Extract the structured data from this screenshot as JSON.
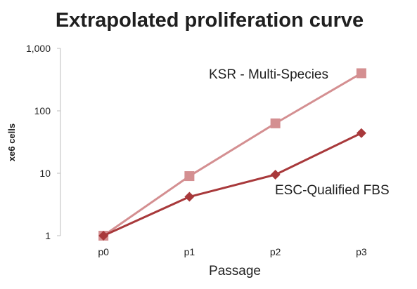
{
  "chart_data": {
    "type": "line",
    "title": "Extrapolated proliferation curve",
    "xlabel": "Passage",
    "ylabel": "xe6 cells",
    "yscale": "log",
    "ylim": [
      1,
      1000
    ],
    "yticks": [
      {
        "value": 1,
        "label": "1"
      },
      {
        "value": 10,
        "label": "10"
      },
      {
        "value": 100,
        "label": "100"
      },
      {
        "value": 1000,
        "label": "1,000"
      }
    ],
    "categories": [
      "p0",
      "p1",
      "p2",
      "p3"
    ],
    "grid": false,
    "legend": "none",
    "series": [
      {
        "name": "KSR - Multi-Species",
        "values": [
          1,
          9,
          63,
          400
        ],
        "color": "#d48f91",
        "marker": "square"
      },
      {
        "name": "ESC-Qualified FBS",
        "values": [
          1,
          4.2,
          9.5,
          44
        ],
        "color": "#a8393b",
        "marker": "diamond"
      }
    ]
  }
}
